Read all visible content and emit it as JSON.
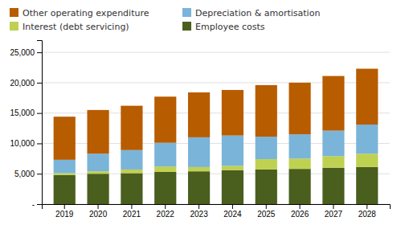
{
  "chart_data": {
    "type": "bar",
    "stacked": true,
    "categories": [
      "2019",
      "2020",
      "2021",
      "2022",
      "2023",
      "2024",
      "2025",
      "2026",
      "2027",
      "2028"
    ],
    "series": [
      {
        "name": "Employee costs",
        "color": "#4a5e1e",
        "values": [
          4800,
          5000,
          5100,
          5300,
          5400,
          5600,
          5700,
          5800,
          6000,
          6100
        ]
      },
      {
        "name": "Interest (debt servicing)",
        "color": "#bfd150",
        "values": [
          300,
          400,
          600,
          900,
          700,
          700,
          1700,
          1700,
          1900,
          2200
        ]
      },
      {
        "name": "Depreciation & amortisation",
        "color": "#7ab4d9",
        "values": [
          2200,
          2900,
          3200,
          3900,
          4900,
          5000,
          3700,
          4000,
          4200,
          4800
        ]
      },
      {
        "name": "Other operating expenditure",
        "color": "#b85c00",
        "values": [
          7100,
          7200,
          7300,
          7600,
          7400,
          7500,
          8500,
          8500,
          9000,
          9200
        ]
      }
    ],
    "ylim": [
      0,
      27000
    ],
    "yticks": [
      {
        "value": 0,
        "label": "-"
      },
      {
        "value": 5000,
        "label": "5,000"
      },
      {
        "value": 10000,
        "label": "10,000"
      },
      {
        "value": 15000,
        "label": "15,000"
      },
      {
        "value": 20000,
        "label": "20,000"
      },
      {
        "value": 25000,
        "label": "25,000"
      }
    ],
    "grid": true,
    "legend": "upper left"
  }
}
